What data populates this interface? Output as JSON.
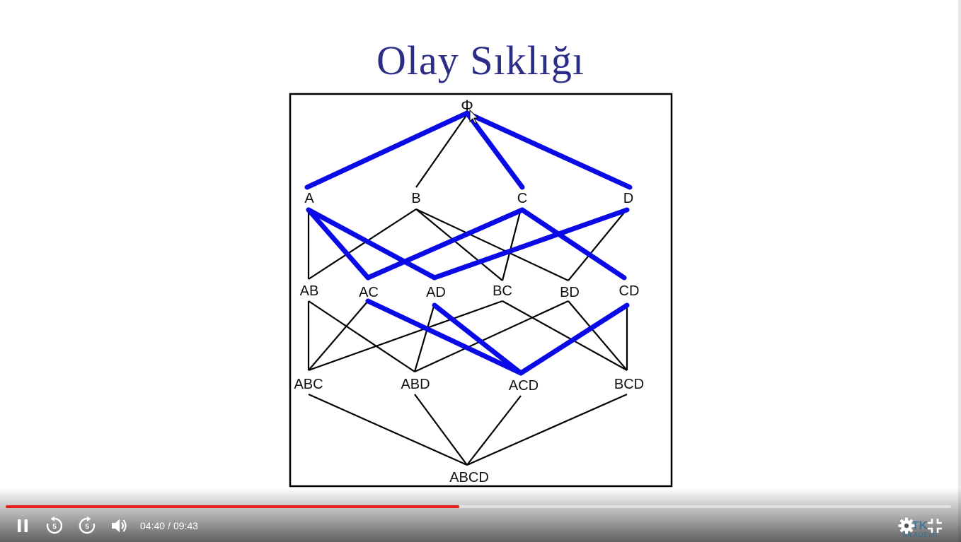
{
  "slide": {
    "title": "Olay Sıklığı",
    "nodes": {
      "root": "Φ",
      "level1": [
        "A",
        "B",
        "C",
        "D"
      ],
      "level2": [
        "AB",
        "AC",
        "AD",
        "BC",
        "BD",
        "CD"
      ],
      "level3": [
        "ABC",
        "ABD",
        "ACD",
        "BCD"
      ],
      "level4": [
        "ABCD"
      ]
    },
    "highlight_color": "#0a0ae6",
    "line_color": "#000000"
  },
  "player": {
    "progress_fraction": 0.48,
    "current_time": "04:40",
    "separator": "/",
    "duration": "09:43",
    "progress_color": "#e62117",
    "watermark_text": "BTK",
    "watermark_sub": "AKADEMİ"
  }
}
